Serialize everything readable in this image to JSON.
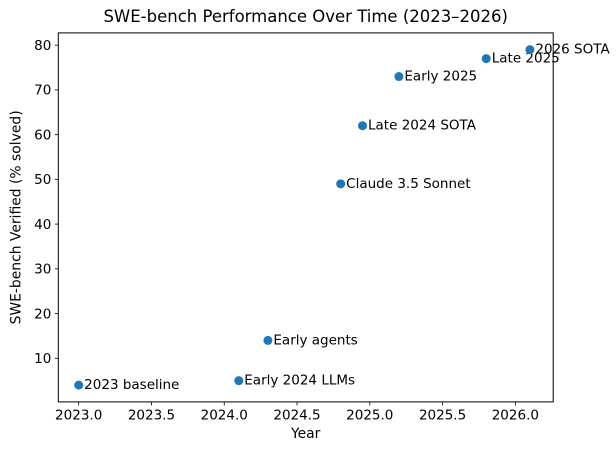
{
  "figure": {
    "title": "SWE-bench Performance Over Time (2023–2026)",
    "xlabel": "Year",
    "ylabel": "SWE-bench Verified (% solved)"
  },
  "chart_data": {
    "type": "scatter",
    "title": "SWE-bench Performance Over Time (2023–2026)",
    "xlabel": "Year",
    "ylabel": "SWE-bench Verified (% solved)",
    "marker_color": "#1f77b4",
    "background_color": "#ffffff",
    "grid": false,
    "legend_position": "none",
    "xlim": [
      2022.86,
      2026.26
    ],
    "ylim": [
      0.25,
      82.75
    ],
    "x_ticks": [
      2023.0,
      2023.5,
      2024.0,
      2024.5,
      2025.0,
      2025.5,
      2026.0
    ],
    "x_tick_labels": [
      "2023.0",
      "2023.5",
      "2024.0",
      "2024.5",
      "2025.0",
      "2025.5",
      "2026.0"
    ],
    "y_ticks": [
      10,
      20,
      30,
      40,
      50,
      60,
      70,
      80
    ],
    "points": [
      {
        "x": 2023.0,
        "y": 4,
        "label": "2023 baseline"
      },
      {
        "x": 2024.1,
        "y": 5,
        "label": "Early 2024 LLMs"
      },
      {
        "x": 2024.3,
        "y": 14,
        "label": "Early agents"
      },
      {
        "x": 2024.8,
        "y": 49,
        "label": "Claude 3.5 Sonnet"
      },
      {
        "x": 2024.95,
        "y": 62,
        "label": "Late 2024 SOTA"
      },
      {
        "x": 2025.2,
        "y": 73,
        "label": "Early 2025"
      },
      {
        "x": 2025.8,
        "y": 77,
        "label": "Late 2025"
      },
      {
        "x": 2026.1,
        "y": 79,
        "label": "2026 SOTA"
      }
    ]
  }
}
